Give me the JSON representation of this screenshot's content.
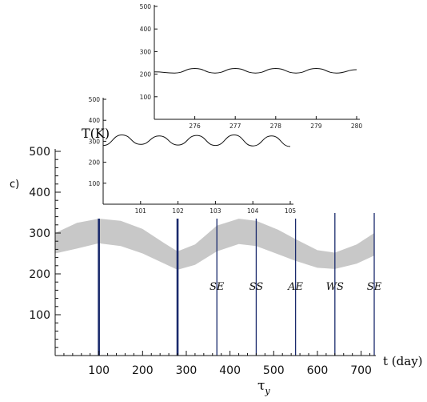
{
  "panel_label": "c)",
  "chart_data": [
    {
      "type": "area",
      "ylabel": "T(K)",
      "xlabel": "t (day)",
      "xlabel_sub": "τ",
      "xlabel_sub_index": "y",
      "xlim": [
        0,
        730
      ],
      "ylim": [
        0,
        500
      ],
      "xticks": [
        100,
        200,
        300,
        400,
        500,
        600,
        700
      ],
      "yticks": [
        100,
        200,
        300,
        400,
        500
      ],
      "band_color": "#c8c8c8",
      "line_color": "#1a2a6c",
      "band": {
        "x": [
          0,
          50,
          100,
          150,
          200,
          250,
          280,
          320,
          370,
          420,
          460,
          510,
          550,
          600,
          640,
          690,
          730
        ],
        "upper": [
          300,
          325,
          335,
          330,
          310,
          275,
          255,
          272,
          318,
          335,
          330,
          308,
          285,
          258,
          252,
          272,
          300
        ],
        "lower": [
          250,
          262,
          275,
          268,
          250,
          225,
          210,
          222,
          255,
          273,
          268,
          248,
          232,
          215,
          212,
          225,
          245
        ]
      },
      "vertical_lines": [
        {
          "x": 100,
          "label": "",
          "bold": true
        },
        {
          "x": 280,
          "label": "",
          "bold": true
        },
        {
          "x": 370,
          "label": "SE",
          "bold": false
        },
        {
          "x": 460,
          "label": "SS",
          "bold": false
        },
        {
          "x": 550,
          "label": "AE",
          "bold": false
        },
        {
          "x": 640,
          "label": "WS",
          "bold": false
        },
        {
          "x": 730,
          "label": "SE",
          "bold": false
        }
      ]
    },
    {
      "type": "line",
      "xlim": [
        100,
        105
      ],
      "ylim": [
        0,
        500
      ],
      "xticks": [
        101,
        102,
        103,
        104,
        105
      ],
      "yticks": [
        100,
        200,
        300,
        400,
        500
      ],
      "x": [
        100.0,
        100.5,
        101.0,
        101.5,
        102.0,
        102.5,
        103.0,
        103.5,
        104.0,
        104.5,
        105.0
      ],
      "y": [
        280,
        330,
        285,
        325,
        282,
        328,
        280,
        330,
        278,
        325,
        275
      ]
    },
    {
      "type": "line",
      "xlim": [
        275,
        280
      ],
      "ylim": [
        0,
        500
      ],
      "xticks": [
        276,
        277,
        278,
        279,
        280
      ],
      "yticks": [
        100,
        200,
        300,
        400,
        500
      ],
      "x": [
        275.0,
        275.5,
        276.0,
        276.5,
        277.0,
        277.5,
        278.0,
        278.5,
        279.0,
        279.5,
        280.0
      ],
      "y": [
        210,
        205,
        225,
        205,
        225,
        205,
        225,
        205,
        225,
        205,
        220
      ]
    }
  ]
}
